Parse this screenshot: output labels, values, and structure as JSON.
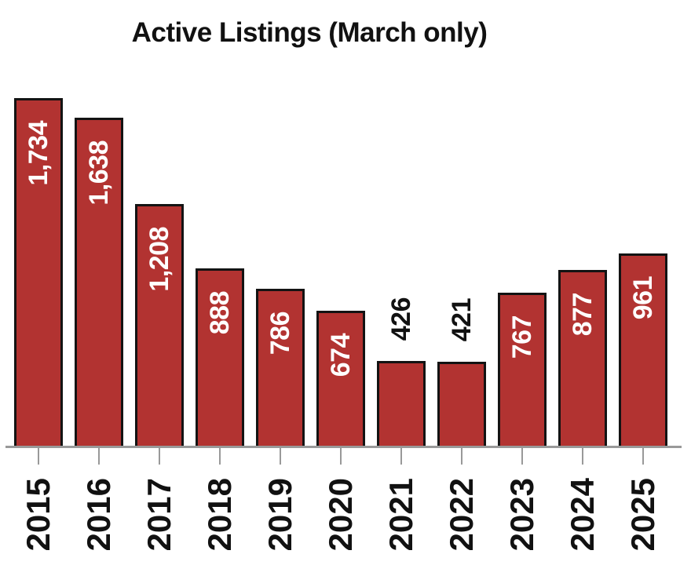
{
  "chart_data": {
    "type": "bar",
    "title": "Active Listings (March only)",
    "categories": [
      "2015",
      "2016",
      "2017",
      "2018",
      "2019",
      "2020",
      "2021",
      "2022",
      "2023",
      "2024",
      "2025"
    ],
    "values": [
      1734,
      1638,
      1208,
      888,
      786,
      674,
      426,
      421,
      767,
      877,
      961
    ],
    "value_labels": [
      "1,734",
      "1,638",
      "1,208",
      "888",
      "786",
      "674",
      "426",
      "421",
      "767",
      "877",
      "961"
    ],
    "label_positions": [
      "inside",
      "inside",
      "inside",
      "inside",
      "inside",
      "inside",
      "above",
      "above",
      "inside",
      "inside",
      "inside"
    ],
    "xlabel": "",
    "ylabel": "",
    "ylim": [
      0,
      1800
    ],
    "grid": false,
    "legend_position": "none",
    "colors": {
      "bar_fill": "#b23331",
      "bar_border": "#131313",
      "inside_label": "#ffffff",
      "above_label": "#111111",
      "axis": "#999999",
      "title_text": "#111111"
    }
  }
}
